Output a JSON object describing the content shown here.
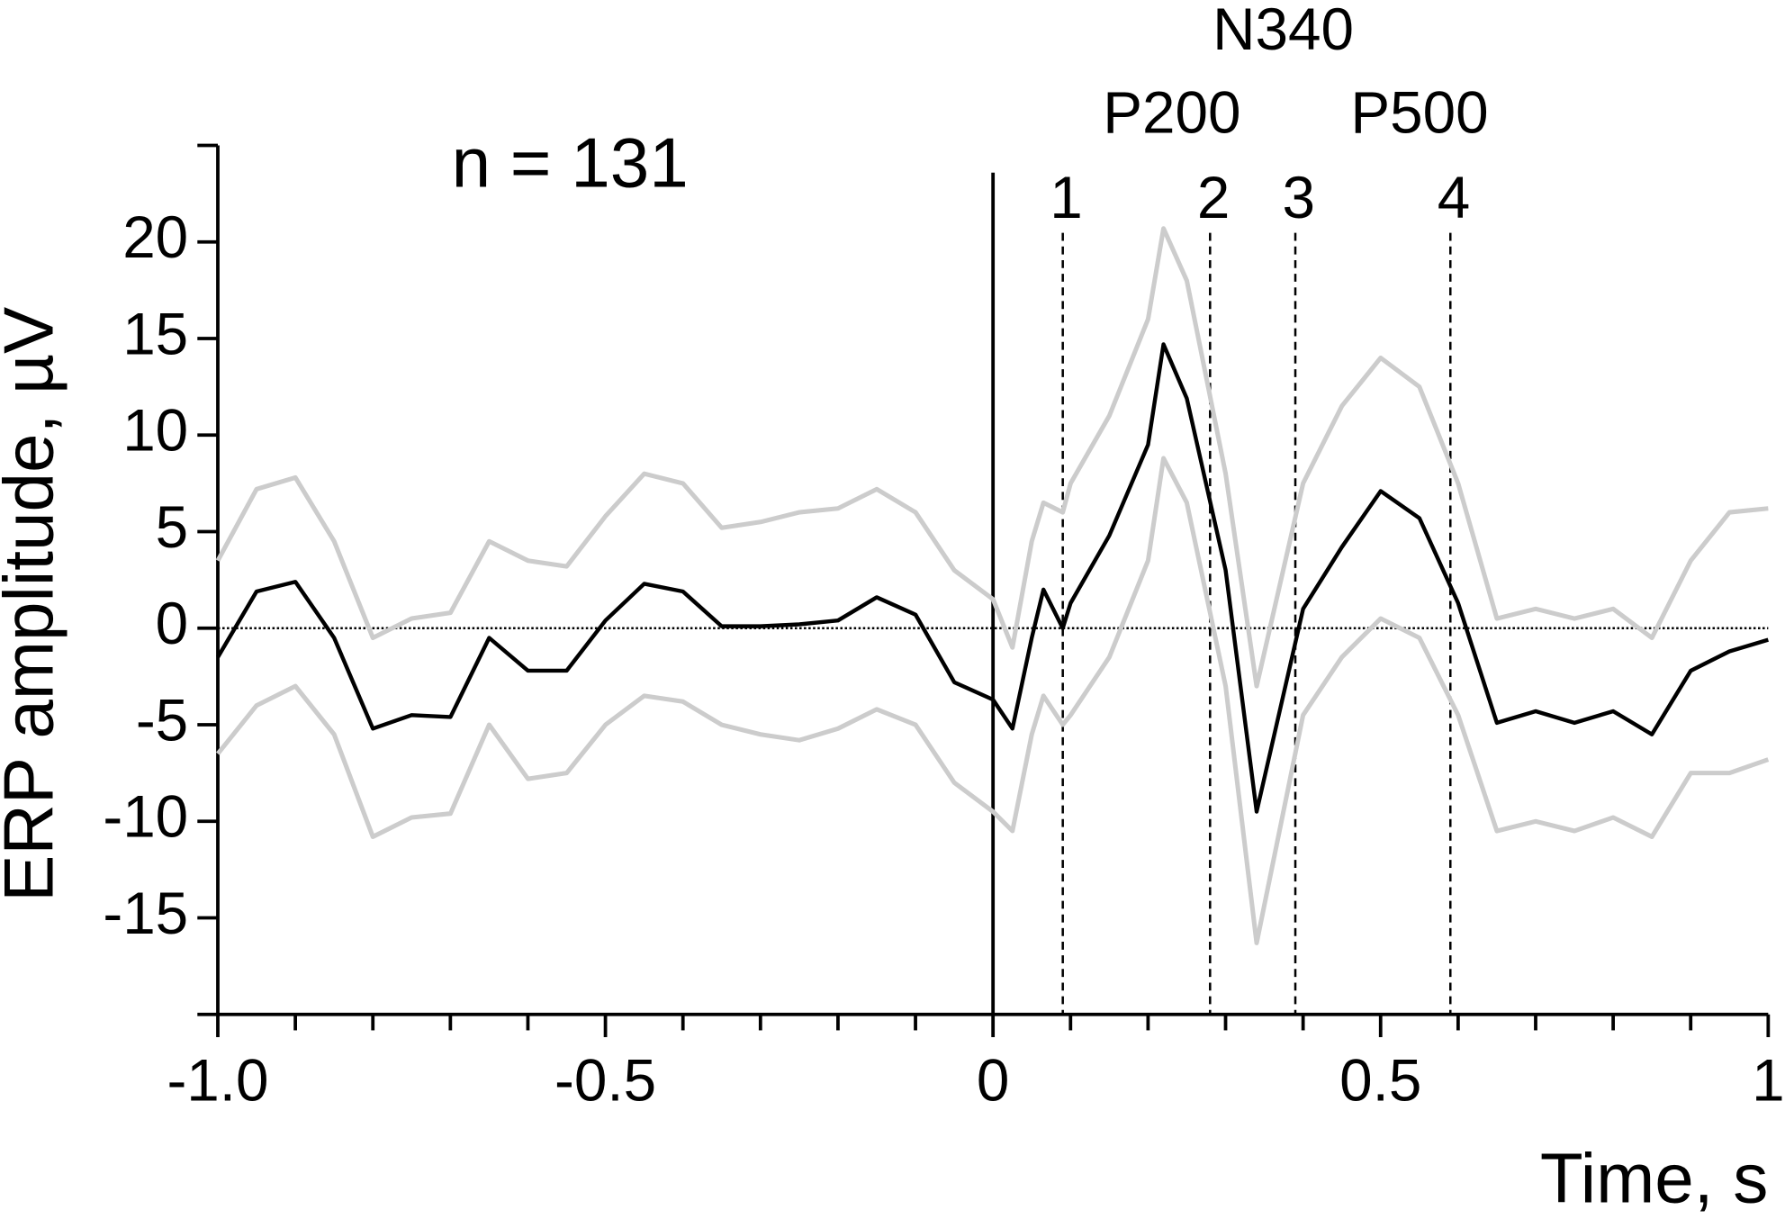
{
  "chart_data": {
    "type": "line",
    "annotation": "n = 131",
    "xlabel": "Time, s",
    "ylabel": "ERP amplitude, µV",
    "xlim": [
      -1,
      1
    ],
    "ylim": [
      -20,
      25
    ],
    "xticks": [
      {
        "value": -1,
        "label": "-1.0"
      },
      -0.5,
      0,
      0.5,
      1
    ],
    "xminorticks": [
      -0.9,
      -0.8,
      -0.7,
      -0.6,
      -0.4,
      -0.3,
      -0.2,
      -0.1,
      0.1,
      0.2,
      0.3,
      0.4,
      0.6,
      0.7,
      0.8,
      0.9
    ],
    "yticks": [
      -15,
      -10,
      -5,
      0,
      5,
      10,
      15,
      20
    ],
    "zero_line": true,
    "onset_line": 0,
    "markers": [
      {
        "x": 0.09,
        "label": "1"
      },
      {
        "x": 0.28,
        "label": "2"
      },
      {
        "x": 0.39,
        "label": "3"
      },
      {
        "x": 0.59,
        "label": "4"
      }
    ],
    "components": [
      "P200",
      "N340",
      "P500"
    ],
    "x": [
      -1.0,
      -0.95,
      -0.9,
      -0.85,
      -0.8,
      -0.75,
      -0.7,
      -0.65,
      -0.6,
      -0.55,
      -0.5,
      -0.45,
      -0.4,
      -0.35,
      -0.3,
      -0.25,
      -0.2,
      -0.15,
      -0.1,
      -0.05,
      0,
      0.025,
      0.05,
      0.065,
      0.09,
      0.1,
      0.15,
      0.2,
      0.22,
      0.25,
      0.3,
      0.34,
      0.4,
      0.45,
      0.5,
      0.55,
      0.6,
      0.65,
      0.7,
      0.75,
      0.8,
      0.85,
      0.9,
      0.95,
      1.0
    ],
    "series": [
      {
        "name": "upper",
        "color": "#cccccc",
        "values": [
          3.5,
          7.2,
          7.8,
          4.5,
          -0.5,
          0.5,
          0.8,
          4.5,
          3.5,
          3.2,
          5.8,
          8.0,
          7.5,
          5.2,
          5.5,
          6.0,
          6.2,
          7.2,
          6.0,
          3.0,
          1.5,
          -1.0,
          4.5,
          6.5,
          6.0,
          7.5,
          11.0,
          16.0,
          20.7,
          18.0,
          8.0,
          -3.0,
          7.5,
          11.5,
          14.0,
          12.5,
          7.5,
          0.5,
          1.0,
          0.5,
          1.0,
          -0.5,
          3.5,
          6.0,
          6.2
        ]
      },
      {
        "name": "mean",
        "color": "#000000",
        "values": [
          -1.5,
          1.9,
          2.4,
          -0.5,
          -5.2,
          -4.5,
          -4.6,
          -0.5,
          -2.2,
          -2.2,
          0.4,
          2.3,
          1.9,
          0.1,
          0.1,
          0.2,
          0.4,
          1.6,
          0.7,
          -2.8,
          -3.7,
          -5.2,
          -0.5,
          2.0,
          0.0,
          1.3,
          4.8,
          9.5,
          14.7,
          11.9,
          3.0,
          -9.5,
          1.0,
          4.2,
          7.1,
          5.7,
          1.3,
          -4.9,
          -4.3,
          -4.9,
          -4.3,
          -5.5,
          -2.2,
          -1.2,
          -0.6
        ]
      },
      {
        "name": "lower",
        "color": "#cccccc",
        "values": [
          -6.5,
          -4.0,
          -3.0,
          -5.5,
          -10.8,
          -9.8,
          -9.6,
          -5.0,
          -7.8,
          -7.5,
          -5.0,
          -3.5,
          -3.8,
          -5.0,
          -5.5,
          -5.8,
          -5.2,
          -4.2,
          -5.0,
          -8.0,
          -9.5,
          -10.5,
          -5.5,
          -3.5,
          -5.0,
          -4.5,
          -1.5,
          3.5,
          8.8,
          6.5,
          -3.0,
          -16.3,
          -4.5,
          -1.5,
          0.5,
          -0.5,
          -4.5,
          -10.5,
          -10.0,
          -10.5,
          -9.8,
          -10.8,
          -7.5,
          -7.5,
          -6.8
        ]
      }
    ]
  }
}
